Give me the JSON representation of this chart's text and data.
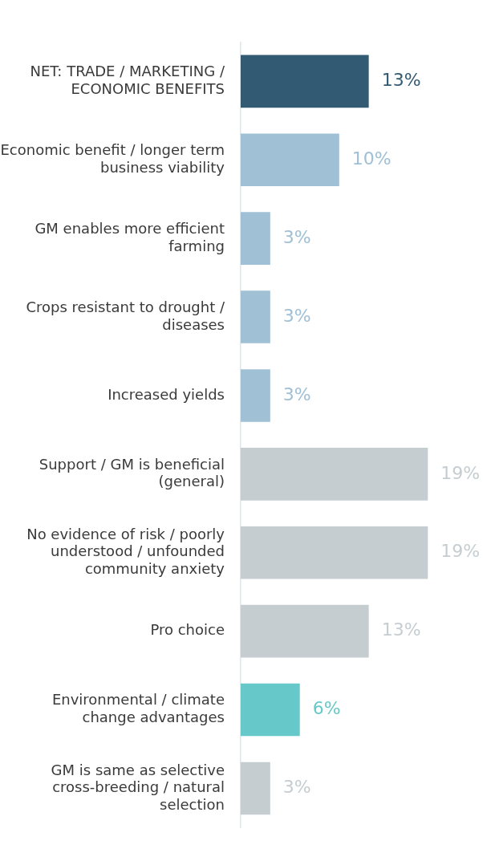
{
  "chart_data": {
    "type": "bar",
    "orientation": "horizontal",
    "tick_labels": "y",
    "categories": [
      "NET: TRADE / MARKETING / ECONOMIC BENEFITS",
      "Economic benefit / longer term business viability",
      "GM enables more efficient farming",
      "Crops resistant to drought / diseases",
      "Increased yields",
      "Support / GM is beneficial (general)",
      "No evidence of risk / poorly understood / unfounded community anxiety",
      "Pro choice",
      "Environmental / climate change advantages",
      "GM is same as selective cross-breeding / natural selection"
    ],
    "values": [
      13,
      10,
      3,
      3,
      3,
      19,
      19,
      13,
      6,
      3
    ],
    "value_labels": [
      "13%",
      "10%",
      "3%",
      "3%",
      "3%",
      "19%",
      "19%",
      "13%",
      "6%",
      "3%"
    ],
    "colors": [
      "#325a73",
      "#a0c0d6",
      "#a0c0d6",
      "#a0c0d6",
      "#a0c0d6",
      "#c5cdd1",
      "#c5cdd1",
      "#c5cdd1",
      "#66c8c8",
      "#c5cdd1"
    ]
  }
}
